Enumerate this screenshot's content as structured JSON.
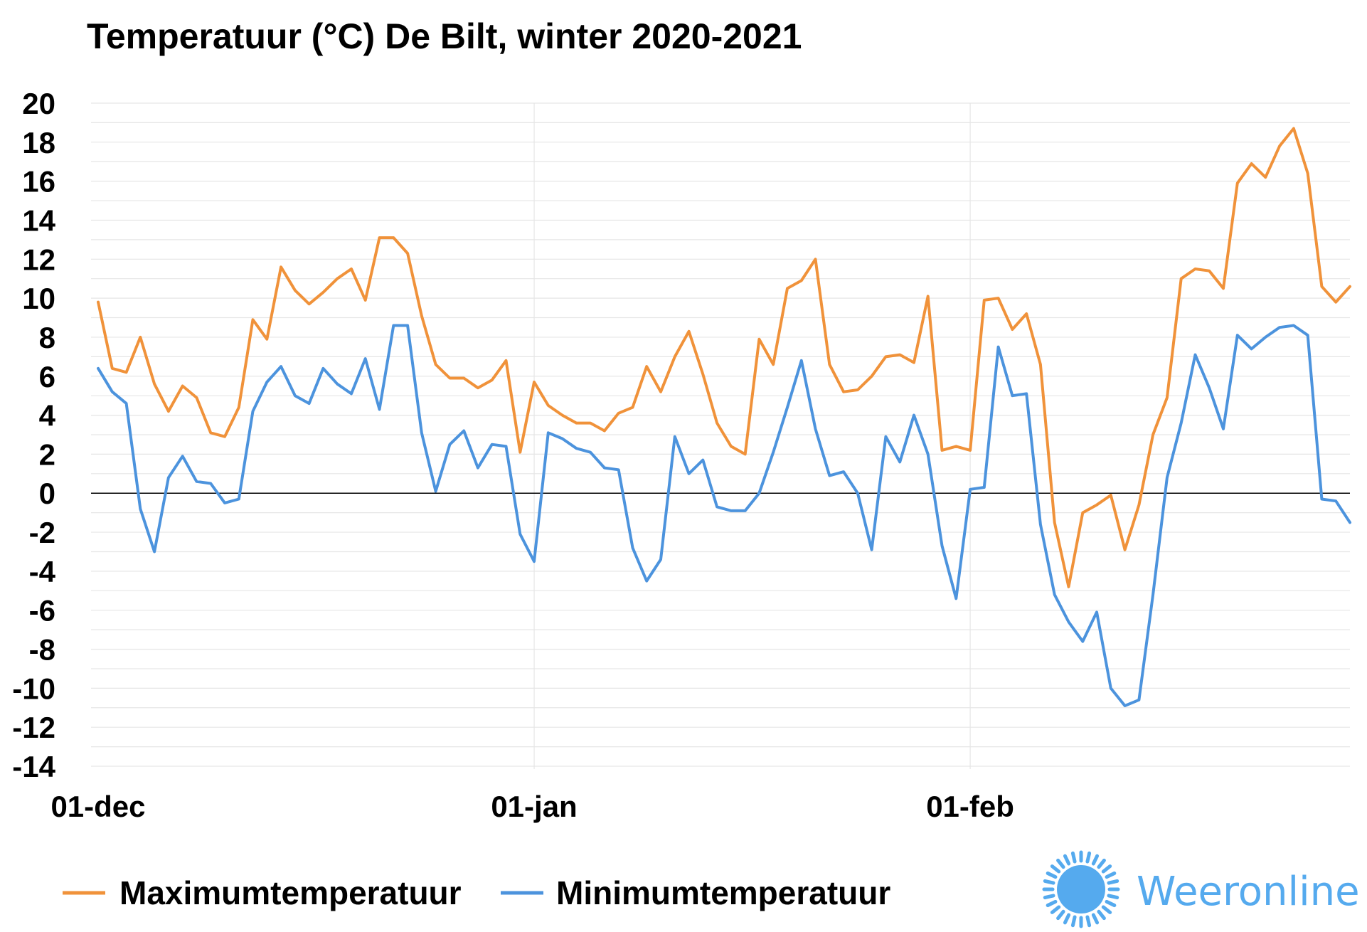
{
  "chart_data": {
    "type": "line",
    "title": "Temperatuur (°C)  De Bilt, winter 2020-2021",
    "xlabel": "",
    "ylabel": "",
    "ylim": [
      -14,
      20
    ],
    "yticks": [
      20,
      18,
      16,
      14,
      12,
      10,
      8,
      6,
      4,
      2,
      0,
      -2,
      -4,
      -6,
      -8,
      -10,
      -12,
      -14
    ],
    "xtick_labels": [
      {
        "day_index": 0,
        "label": "01-dec"
      },
      {
        "day_index": 31,
        "label": "01-jan"
      },
      {
        "day_index": 62,
        "label": "01-feb"
      }
    ],
    "grid": true,
    "legend_position": "bottom",
    "series": [
      {
        "name": "Maximumtemperatuur",
        "color": "#f0923a",
        "values": [
          9.8,
          6.4,
          6.2,
          8.0,
          5.6,
          4.2,
          5.5,
          4.9,
          3.1,
          2.9,
          4.4,
          8.9,
          7.9,
          11.6,
          10.4,
          9.7,
          10.3,
          11.0,
          11.5,
          9.9,
          13.1,
          13.1,
          12.3,
          9.1,
          6.6,
          5.9,
          5.9,
          5.4,
          5.8,
          6.8,
          2.1,
          5.7,
          4.5,
          4.0,
          3.6,
          3.6,
          3.2,
          4.1,
          4.4,
          6.5,
          5.2,
          7.0,
          8.3,
          6.1,
          3.6,
          2.4,
          2.0,
          7.9,
          6.6,
          10.5,
          10.9,
          12.0,
          6.6,
          5.2,
          5.3,
          6.0,
          7.0,
          7.1,
          6.7,
          10.1,
          2.2,
          2.4,
          2.2,
          9.9,
          10.0,
          8.4,
          9.2,
          6.6,
          -1.5,
          -4.8,
          -1.0,
          -0.6,
          -0.1,
          -2.9,
          -0.6,
          3.0,
          4.9,
          11.0,
          11.5,
          11.4,
          10.5,
          15.9,
          16.9,
          16.2,
          17.8,
          18.7,
          16.4,
          10.6,
          9.8,
          10.6
        ]
      },
      {
        "name": "Minimumtemperatuur",
        "color": "#4c93dd",
        "values": [
          6.4,
          5.2,
          4.6,
          -0.8,
          -3.0,
          0.8,
          1.9,
          0.6,
          0.5,
          -0.5,
          -0.3,
          4.2,
          5.7,
          6.5,
          5.0,
          4.6,
          6.4,
          5.6,
          5.1,
          6.9,
          4.3,
          8.6,
          8.6,
          3.1,
          0.1,
          2.5,
          3.2,
          1.3,
          2.5,
          2.4,
          -2.1,
          -3.5,
          3.1,
          2.8,
          2.3,
          2.1,
          1.3,
          1.2,
          -2.8,
          -4.5,
          -3.4,
          2.9,
          1.0,
          1.7,
          -0.7,
          -0.9,
          -0.9,
          0.0,
          2.1,
          4.4,
          6.8,
          3.3,
          0.9,
          1.1,
          0.0,
          -2.9,
          2.9,
          1.6,
          4.0,
          2.0,
          -2.7,
          -5.4,
          0.2,
          0.3,
          7.5,
          5.0,
          5.1,
          -1.6,
          -5.2,
          -6.6,
          -7.6,
          -6.1,
          -10.0,
          -10.9,
          -10.6,
          -5.2,
          0.8,
          3.6,
          7.1,
          5.4,
          3.3,
          8.1,
          7.4,
          8.0,
          8.5,
          8.6,
          8.1,
          -0.3,
          -0.4,
          -1.5
        ]
      }
    ]
  },
  "logo": {
    "text": "Weeronline",
    "icon": "sun-icon",
    "color": "#55aaee"
  }
}
